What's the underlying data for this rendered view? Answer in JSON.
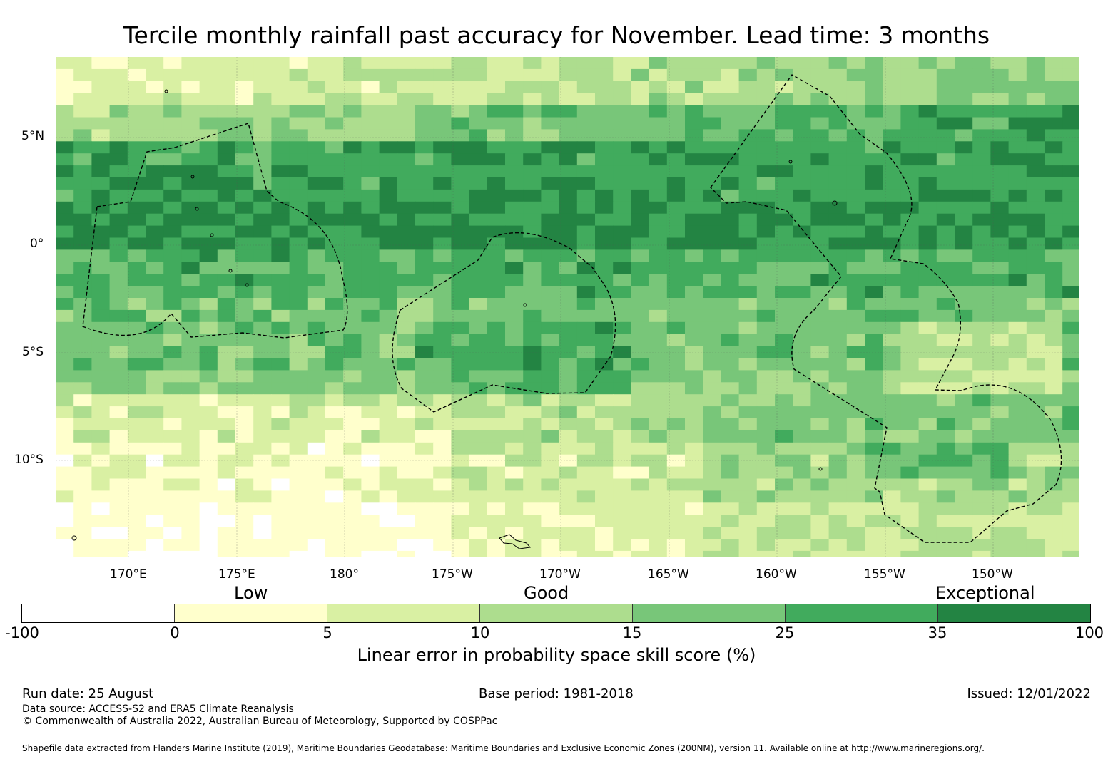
{
  "title": "Tercile monthly rainfall past accuracy for November. Lead time: 3 months",
  "map": {
    "lat_labels": [
      "5°N",
      "0°",
      "5°S",
      "10°S"
    ],
    "lon_labels": [
      "170°E",
      "175°E",
      "180°",
      "175°W",
      "170°W",
      "165°W",
      "160°W",
      "155°W",
      "150°W"
    ],
    "grid_lines": true
  },
  "legend": {
    "categories": [
      "Low",
      "Good",
      "Exceptional"
    ],
    "ticks": [
      "-100",
      "0",
      "5",
      "10",
      "15",
      "25",
      "35",
      "100"
    ],
    "colors": [
      "#ffffff",
      "#ffffcc",
      "#d9f0a3",
      "#addd8e",
      "#78c679",
      "#41ab5d",
      "#238443"
    ],
    "title": "Linear error in probability space skill score (%)"
  },
  "footer": {
    "run_date": "Run date: 25 August",
    "base_period": "Base period: 1981-2018",
    "issued": "Issued: 12/01/2022",
    "data_source": "Data source: ACCESS-S2 and ERA5 Climate Reanalysis",
    "copyright": "© Commonwealth of Australia 2022, Australian Bureau of Meteorology, Supported by COSPPac",
    "shapefile": "Shapefile data extracted from Flanders Marine Institute (2019), Maritime Boundaries Geodatabase: Maritime Boundaries and Exclusive Economic Zones (200NM), version 11. Available online at http://www.marineregions.org/."
  }
}
